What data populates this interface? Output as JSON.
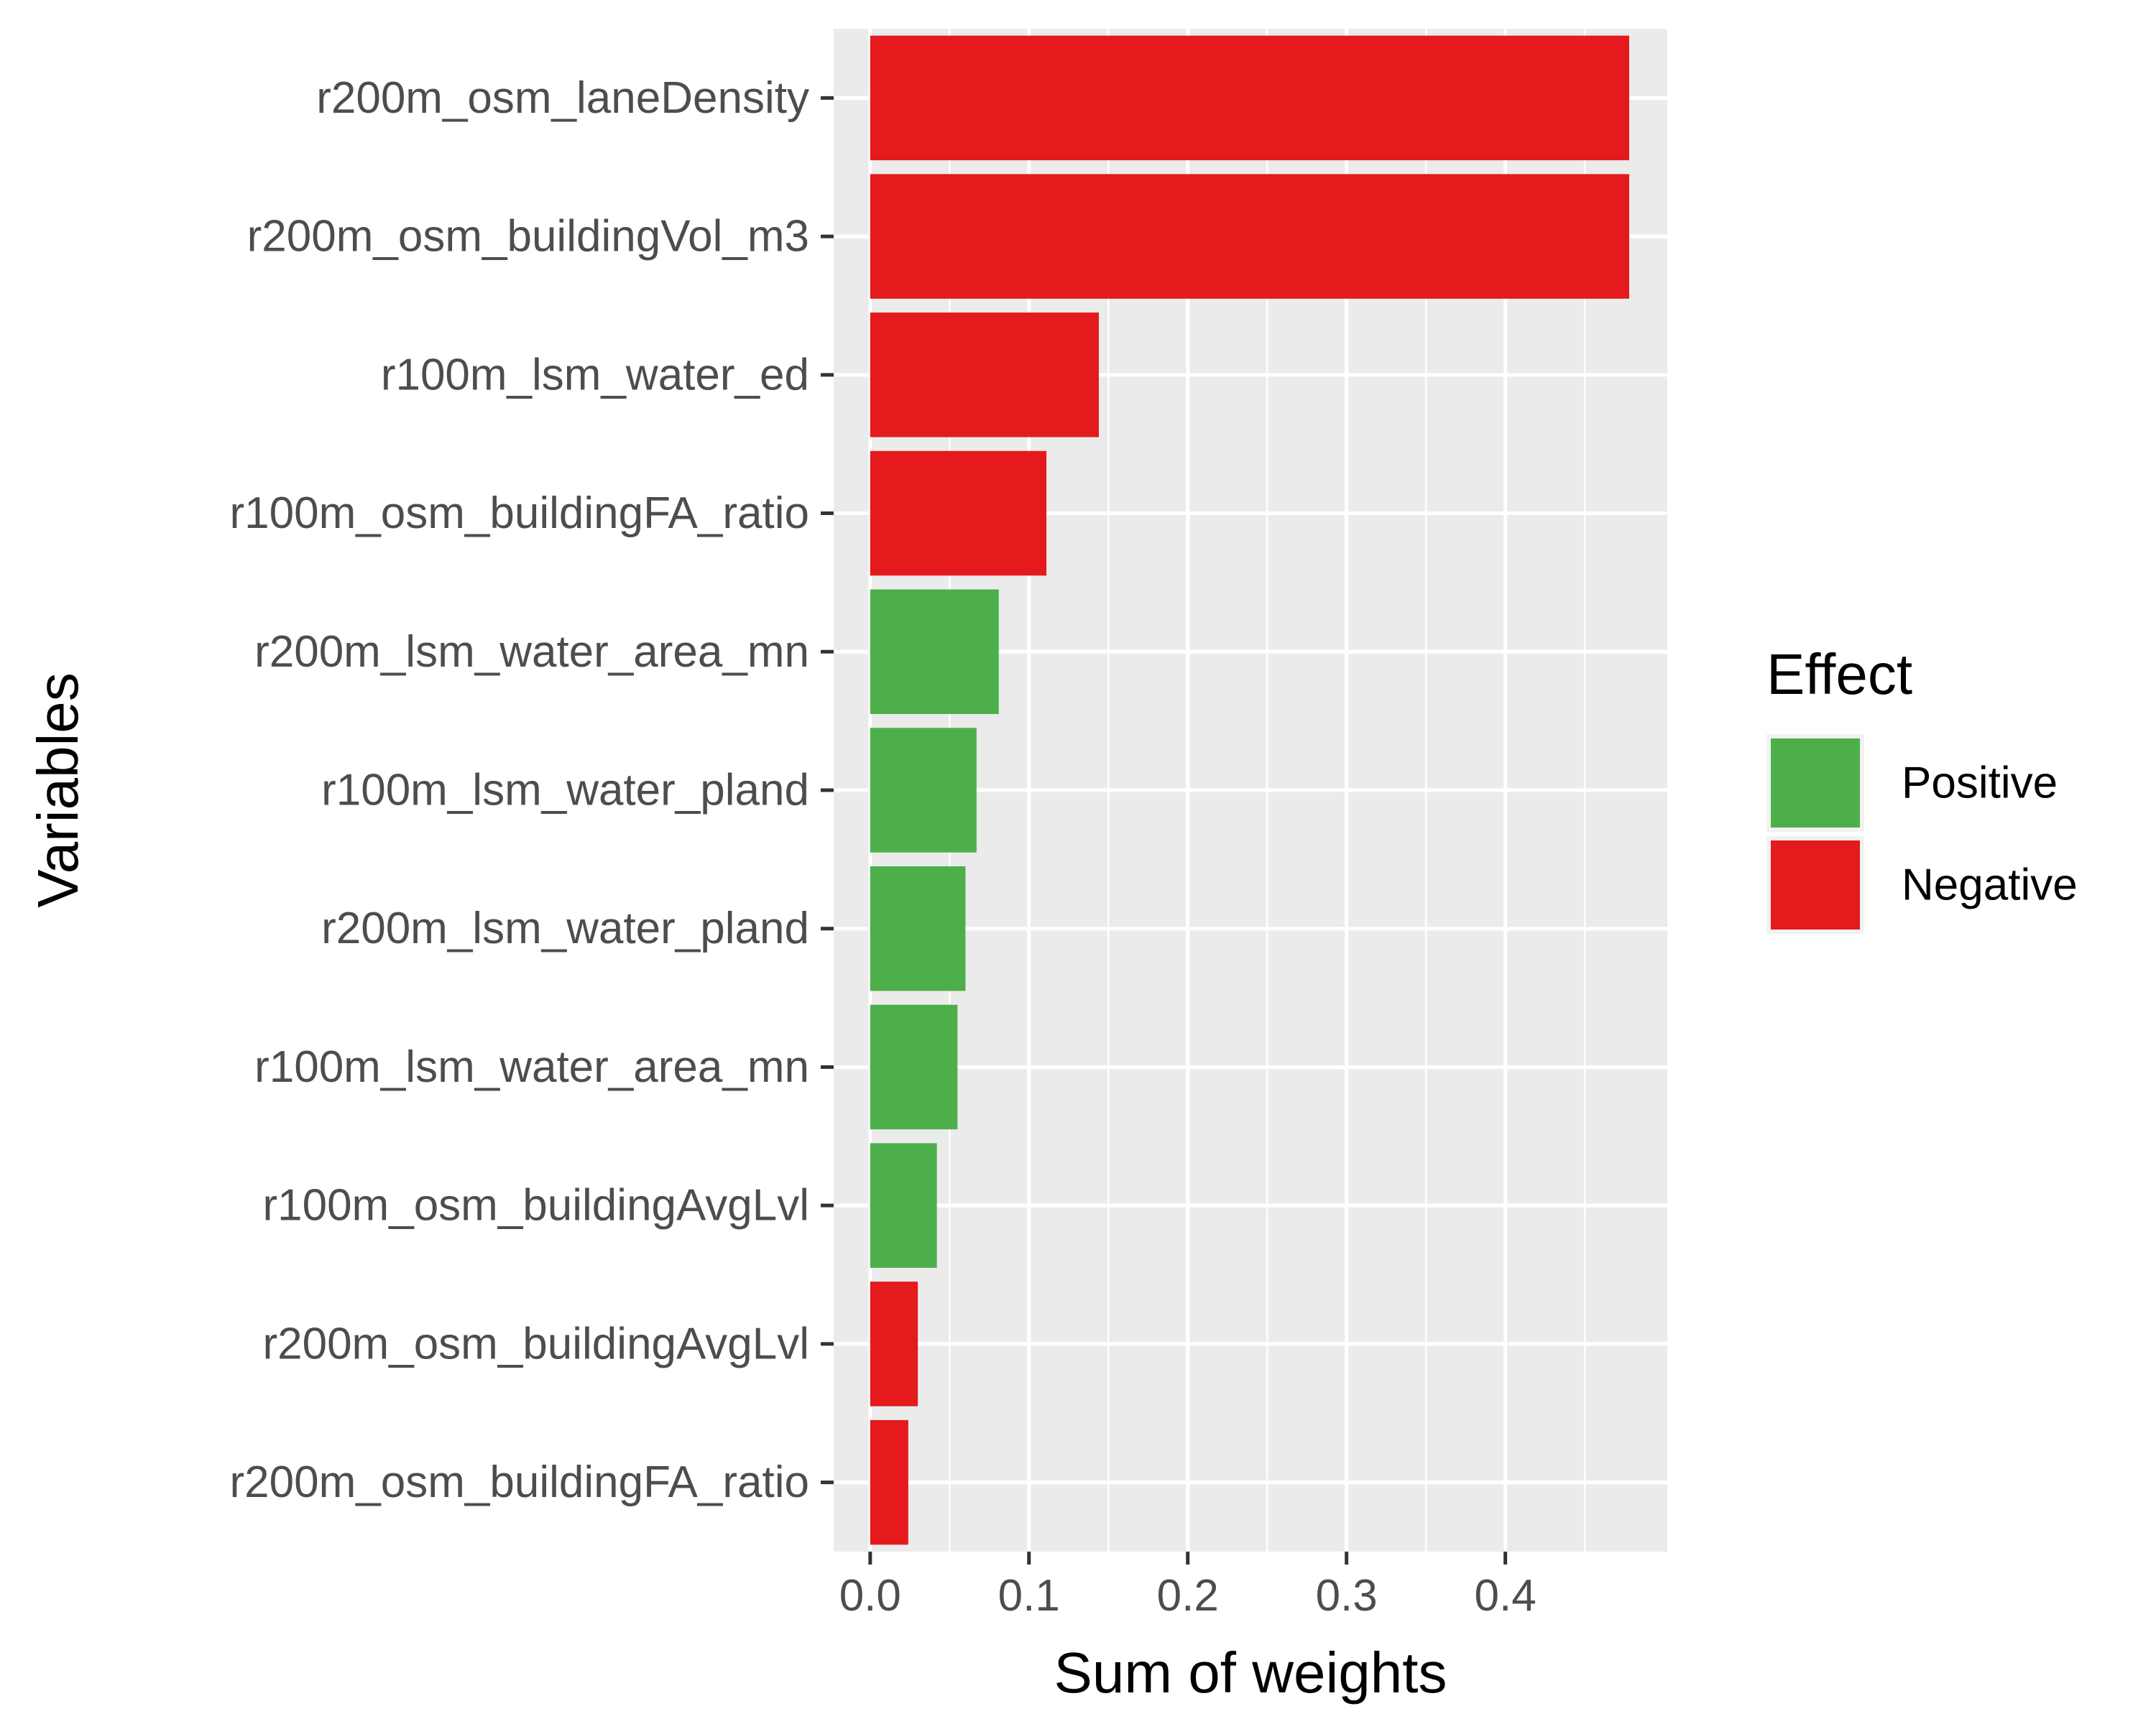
{
  "chart_data": {
    "type": "bar",
    "orientation": "horizontal",
    "xlabel": "Sum of weights",
    "ylabel": "Variables",
    "xlim": [
      -0.023,
      0.502
    ],
    "x_ticks": [
      0.0,
      0.1,
      0.2,
      0.3,
      0.4
    ],
    "x_tick_labels": [
      "0.0",
      "0.1",
      "0.2",
      "0.3",
      "0.4"
    ],
    "grid": true,
    "legend": {
      "title": "Effect",
      "position": "right",
      "entries": [
        {
          "label": "Positive",
          "color": "#4daf4a"
        },
        {
          "label": "Negative",
          "color": "#e41a1c"
        }
      ]
    },
    "categories": [
      "r200m_osm_laneDensity",
      "r200m_osm_buildingVol_m3",
      "r100m_lsm_water_ed",
      "r100m_osm_buildingFA_ratio",
      "r200m_lsm_water_area_mn",
      "r100m_lsm_water_pland",
      "r200m_lsm_water_pland",
      "r100m_lsm_water_area_mn",
      "r100m_osm_buildingAvgLvl",
      "r200m_osm_buildingAvgLvl",
      "r200m_osm_buildingFA_ratio"
    ],
    "values": [
      0.478,
      0.478,
      0.144,
      0.111,
      0.081,
      0.067,
      0.06,
      0.055,
      0.042,
      0.03,
      0.024
    ],
    "effects": [
      "Negative",
      "Negative",
      "Negative",
      "Negative",
      "Positive",
      "Positive",
      "Positive",
      "Positive",
      "Positive",
      "Negative",
      "Negative"
    ]
  }
}
